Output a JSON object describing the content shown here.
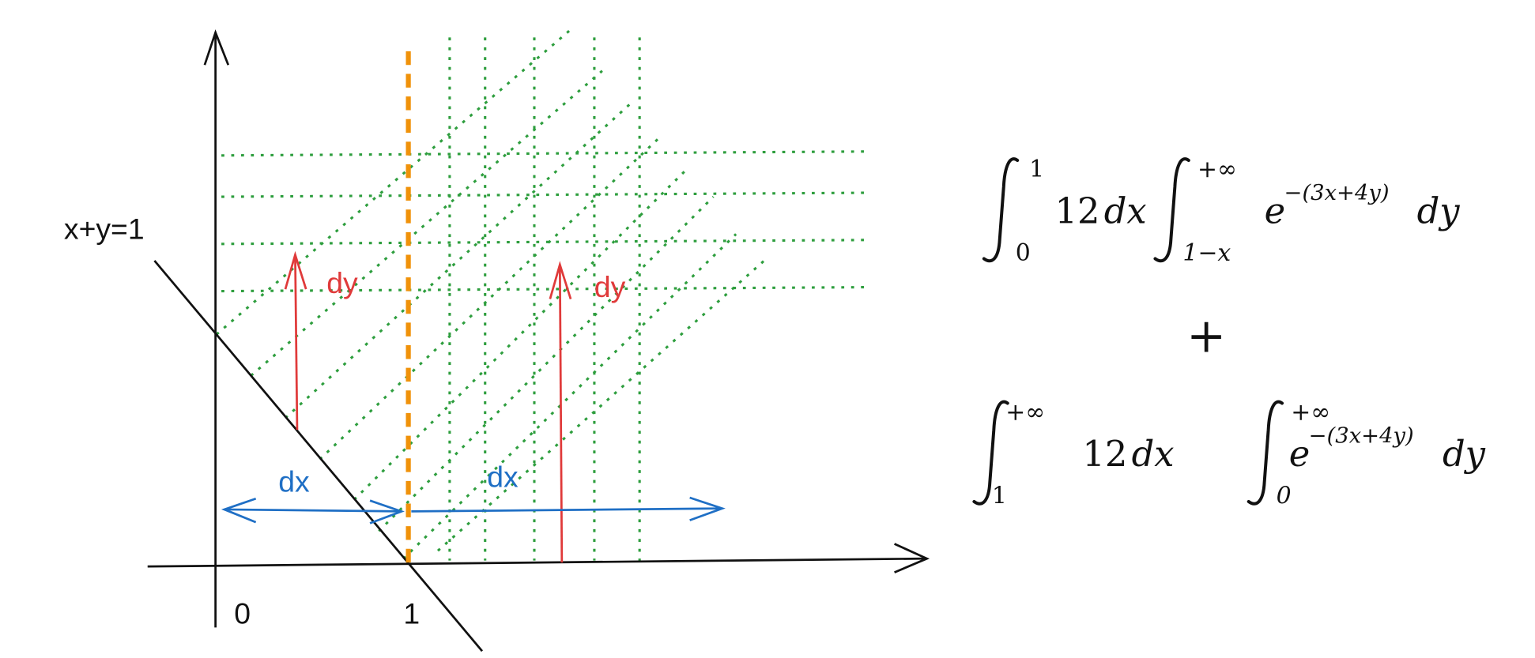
{
  "graph": {
    "line_label": "x+y=1",
    "x_ticks": [
      "0",
      "1"
    ],
    "arrows": [
      {
        "label": "dy"
      },
      {
        "label": "dy"
      },
      {
        "label": "dx"
      },
      {
        "label": "dx"
      }
    ]
  },
  "formula": {
    "operator": "+",
    "terms": [
      {
        "outer_lower": "0",
        "outer_upper": "1",
        "coefficient": "12",
        "outer_differential": "dx",
        "inner_lower": "1−x",
        "inner_upper": "+∞",
        "base": "e",
        "exponent": "−(3x+4y)",
        "inner_differential": "dy"
      },
      {
        "outer_lower": "1",
        "outer_upper": "+∞",
        "coefficient": "12",
        "outer_differential": "dx",
        "inner_lower": "0",
        "inner_upper": "+∞",
        "base": "e",
        "exponent": "−(3x+4y)",
        "inner_differential": "dy"
      }
    ]
  }
}
